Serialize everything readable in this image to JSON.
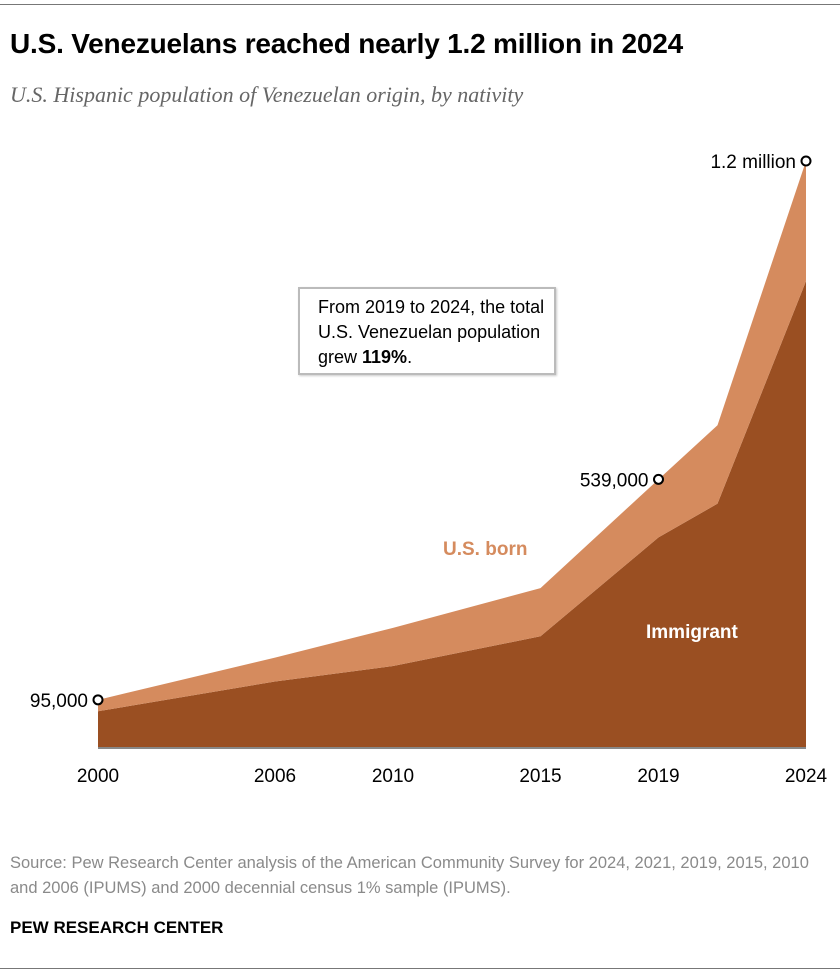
{
  "title": "U.S. Venezuelans reached nearly 1.2 million in 2024",
  "subtitle": "U.S. Hispanic population of Venezuelan origin, by nativity",
  "annotation": {
    "text_before": "From 2019 to 2024, the total U.S. Venezuelan population grew ",
    "bold": "119%",
    "text_after": "."
  },
  "source": "Source: Pew Research Center analysis of the American Community Survey for 2024, 2021, 2019, 2015, 2010 and 2006 (IPUMS) and 2000 decennial census 1% sample (IPUMS).",
  "brand": "PEW RESEARCH CENTER",
  "chart_data": {
    "type": "area",
    "stacked": true,
    "x": [
      2000,
      2006,
      2010,
      2015,
      2019,
      2021,
      2024
    ],
    "tick_labels": [
      "2000",
      "2006",
      "2010",
      "2015",
      "2019",
      "2024"
    ],
    "series": [
      {
        "name": "Immigrant",
        "color": "#9a4f22",
        "values": [
          72000,
          132000,
          163000,
          223000,
          422000,
          490000,
          938000
        ]
      },
      {
        "name": "U.S. born",
        "color": "#d58b5e",
        "values": [
          23000,
          48000,
          77000,
          97000,
          117000,
          158000,
          242000
        ]
      }
    ],
    "totals": [
      95000,
      180000,
      240000,
      320000,
      539000,
      648000,
      1180000
    ],
    "point_labels": [
      {
        "x": 2000,
        "label": "95,000"
      },
      {
        "x": 2019,
        "label": "539,000"
      },
      {
        "x": 2024,
        "label": "1.2 million"
      }
    ],
    "ylim": [
      0,
      1180000
    ],
    "grid": false
  }
}
